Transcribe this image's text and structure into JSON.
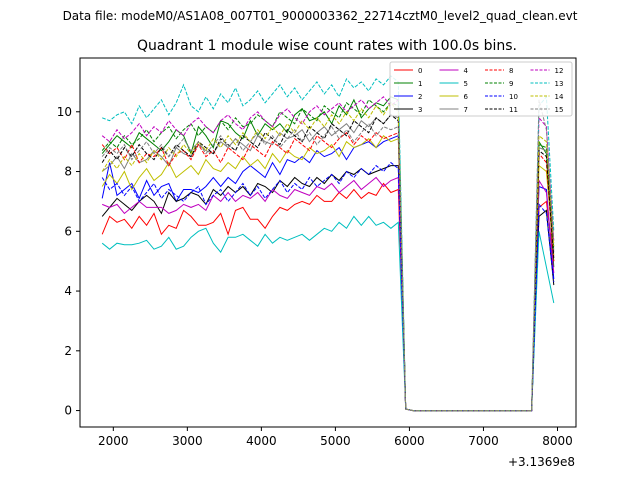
{
  "header": {
    "file_line": "Data file: modeM0/AS1A08_007T01_9000003362_22714cztM0_level2_quad_clean.evt"
  },
  "chart_data": {
    "type": "line",
    "title": "Quadrant 1 module wise count rates with 100.0s bins.",
    "xlabel": "",
    "ylabel": "",
    "offset_label": "+3.1369e8",
    "xlim": [
      1550,
      8250
    ],
    "ylim": [
      -0.55,
      11.8
    ],
    "xticks": [
      2000,
      3000,
      4000,
      5000,
      6000,
      7000,
      8000
    ],
    "xtick_labels": [
      "2000",
      "3000",
      "4000",
      "5000",
      "6000",
      "7000",
      "8000"
    ],
    "yticks": [
      0,
      2,
      4,
      6,
      8,
      10
    ],
    "ytick_labels": [
      "0",
      "2",
      "4",
      "6",
      "8",
      "10"
    ],
    "grid": false,
    "legend_position": "top-right",
    "legend_columns": 4,
    "x": [
      1850,
      1950,
      2050,
      2150,
      2250,
      2350,
      2450,
      2550,
      2650,
      2750,
      2850,
      2950,
      3050,
      3150,
      3250,
      3350,
      3450,
      3550,
      3650,
      3750,
      3850,
      3950,
      4050,
      4150,
      4250,
      4350,
      4450,
      4550,
      4650,
      4750,
      4850,
      4950,
      5050,
      5150,
      5250,
      5350,
      5450,
      5550,
      5650,
      5750,
      5850,
      5950,
      6050,
      6150,
      6250,
      6350,
      6450,
      6550,
      6650,
      6750,
      6850,
      6950,
      7050,
      7150,
      7250,
      7350,
      7450,
      7550,
      7650,
      7750,
      7850,
      7950
    ],
    "series": [
      {
        "name": "0",
        "color": "#ff0000",
        "dash": "solid",
        "values": [
          5.9,
          6.5,
          6.3,
          6.4,
          6.1,
          6.5,
          6.2,
          6.6,
          5.9,
          6.2,
          6.1,
          6.7,
          6.5,
          6.2,
          6.2,
          6.3,
          6.6,
          5.9,
          6.7,
          6.8,
          6.4,
          6.4,
          6.1,
          6.5,
          6.8,
          6.7,
          6.9,
          7.0,
          6.9,
          7.2,
          7.0,
          7.0,
          7.3,
          7.1,
          7.4,
          7.1,
          7.3,
          7.2,
          7.6,
          7.3,
          7.4,
          0.05,
          0.0,
          0.0,
          0.0,
          0.0,
          0.0,
          0.0,
          0.0,
          0.0,
          0.0,
          0.0,
          0.0,
          0.0,
          0.0,
          0.0,
          0.0,
          0.0,
          0.0,
          6.8,
          7.0,
          5.0
        ]
      },
      {
        "name": "1",
        "color": "#008000",
        "dash": "solid",
        "values": [
          8.6,
          8.9,
          9.2,
          9.0,
          8.8,
          9.3,
          9.1,
          8.9,
          8.7,
          9.0,
          9.4,
          9.2,
          8.6,
          9.5,
          9.2,
          8.8,
          9.7,
          9.6,
          9.3,
          9.1,
          9.7,
          9.2,
          9.6,
          9.4,
          9.6,
          9.3,
          9.9,
          10.1,
          9.7,
          9.8,
          10.0,
          9.6,
          10.2,
          9.9,
          10.4,
          9.8,
          10.1,
          10.3,
          10.2,
          10.5,
          10.4,
          0.05,
          0.0,
          0.0,
          0.0,
          0.0,
          0.0,
          0.0,
          0.0,
          0.0,
          0.0,
          0.0,
          0.0,
          0.0,
          0.0,
          0.0,
          0.0,
          0.0,
          0.0,
          9.0,
          8.6,
          4.8
        ]
      },
      {
        "name": "2",
        "color": "#0000ff",
        "dash": "solid",
        "values": [
          7.1,
          8.3,
          7.2,
          7.4,
          7.6,
          7.1,
          7.7,
          7.2,
          7.5,
          7.6,
          7.0,
          7.4,
          7.4,
          7.3,
          7.5,
          7.8,
          7.5,
          7.8,
          7.6,
          8.0,
          8.2,
          8.0,
          7.8,
          8.3,
          7.9,
          8.4,
          8.3,
          8.5,
          8.3,
          8.7,
          8.5,
          8.6,
          8.8,
          8.4,
          8.8,
          8.9,
          9.0,
          8.8,
          9.0,
          9.1,
          9.2,
          0.05,
          0.0,
          0.0,
          0.0,
          0.0,
          0.0,
          0.0,
          0.0,
          0.0,
          0.0,
          0.0,
          0.0,
          0.0,
          0.0,
          0.0,
          0.0,
          0.0,
          0.0,
          7.5,
          7.4,
          4.4
        ]
      },
      {
        "name": "3",
        "color": "#000000",
        "dash": "solid",
        "values": [
          6.5,
          6.8,
          7.1,
          6.9,
          6.7,
          7.0,
          7.2,
          7.0,
          6.6,
          7.3,
          7.0,
          7.1,
          7.3,
          7.2,
          6.9,
          7.4,
          7.2,
          7.5,
          7.3,
          7.5,
          7.2,
          7.6,
          7.5,
          7.3,
          7.7,
          7.5,
          7.8,
          7.6,
          7.5,
          7.8,
          7.6,
          7.9,
          7.7,
          8.0,
          7.9,
          8.1,
          7.9,
          8.0,
          8.1,
          8.2,
          8.2,
          0.05,
          0.0,
          0.0,
          0.0,
          0.0,
          0.0,
          0.0,
          0.0,
          0.0,
          0.0,
          0.0,
          0.0,
          0.0,
          0.0,
          0.0,
          0.0,
          0.0,
          0.0,
          6.5,
          6.7,
          4.2
        ]
      },
      {
        "name": "4",
        "color": "#bf00bf",
        "dash": "solid",
        "values": [
          6.9,
          6.8,
          6.9,
          6.6,
          6.8,
          7.0,
          6.8,
          6.8,
          6.8,
          6.6,
          6.7,
          6.9,
          6.8,
          6.9,
          6.7,
          7.2,
          7.0,
          7.3,
          7.0,
          7.2,
          7.1,
          7.3,
          7.0,
          7.4,
          7.2,
          7.1,
          7.4,
          7.3,
          7.2,
          7.5,
          7.4,
          7.6,
          7.3,
          7.5,
          7.7,
          7.4,
          7.6,
          7.8,
          7.5,
          7.7,
          7.8,
          0.05,
          0.0,
          0.0,
          0.0,
          0.0,
          0.0,
          0.0,
          0.0,
          0.0,
          0.0,
          0.0,
          0.0,
          0.0,
          0.0,
          0.0,
          0.0,
          0.0,
          0.0,
          7.7,
          7.3,
          4.6
        ]
      },
      {
        "name": "5",
        "color": "#00bfbf",
        "dash": "solid",
        "values": [
          5.6,
          5.4,
          5.6,
          5.55,
          5.55,
          5.6,
          5.7,
          5.4,
          5.5,
          5.8,
          5.4,
          5.5,
          5.8,
          6.0,
          6.1,
          5.6,
          5.3,
          5.8,
          5.8,
          5.9,
          5.7,
          5.5,
          5.9,
          5.6,
          5.8,
          5.7,
          5.8,
          5.9,
          5.7,
          5.9,
          6.1,
          6.0,
          6.3,
          6.1,
          6.5,
          6.2,
          6.5,
          6.2,
          6.3,
          6.1,
          6.3,
          0.05,
          0.0,
          0.0,
          0.0,
          0.0,
          0.0,
          0.0,
          0.0,
          0.0,
          0.0,
          0.0,
          0.0,
          0.0,
          0.0,
          0.0,
          0.0,
          0.0,
          0.0,
          6.0,
          4.8,
          3.6
        ]
      },
      {
        "name": "6",
        "color": "#bfbf00",
        "dash": "solid",
        "values": [
          7.5,
          7.9,
          7.6,
          8.0,
          7.4,
          7.8,
          8.1,
          7.7,
          7.9,
          8.3,
          7.8,
          8.0,
          8.2,
          7.9,
          8.4,
          8.1,
          8.0,
          8.3,
          8.1,
          8.5,
          8.2,
          8.4,
          8.1,
          8.6,
          8.3,
          8.7,
          8.5,
          8.4,
          8.8,
          8.6,
          8.7,
          8.9,
          8.5,
          9.0,
          8.8,
          8.9,
          9.1,
          8.8,
          9.2,
          9.0,
          9.1,
          0.05,
          0.0,
          0.0,
          0.0,
          0.0,
          0.0,
          0.0,
          0.0,
          0.0,
          0.0,
          0.0,
          0.0,
          0.0,
          0.0,
          0.0,
          0.0,
          0.0,
          0.0,
          8.2,
          8.0,
          5.2
        ]
      },
      {
        "name": "7",
        "color": "#808080",
        "dash": "solid",
        "values": [
          8.0,
          8.2,
          8.5,
          8.1,
          8.6,
          8.3,
          8.4,
          8.7,
          8.5,
          8.2,
          8.8,
          8.6,
          8.5,
          8.9,
          8.7,
          8.6,
          9.0,
          8.8,
          9.1,
          8.9,
          8.7,
          9.2,
          9.0,
          8.9,
          9.3,
          9.1,
          9.2,
          9.4,
          9.0,
          9.3,
          9.5,
          9.2,
          9.4,
          9.6,
          9.3,
          9.7,
          9.5,
          9.8,
          9.6,
          9.9,
          9.8,
          0.05,
          0.0,
          0.0,
          0.0,
          0.0,
          0.0,
          0.0,
          0.0,
          0.0,
          0.0,
          0.0,
          0.0,
          0.0,
          0.0,
          0.0,
          0.0,
          0.0,
          0.0,
          8.8,
          8.7,
          5.3
        ]
      },
      {
        "name": "8",
        "color": "#ff0000",
        "dash": "dashed",
        "values": [
          8.9,
          8.6,
          8.8,
          8.4,
          8.9,
          8.3,
          8.6,
          8.5,
          8.8,
          8.2,
          8.6,
          8.7,
          8.4,
          8.9,
          8.5,
          8.7,
          8.3,
          8.8,
          8.6,
          8.4,
          8.9,
          8.7,
          8.5,
          9.0,
          8.8,
          8.6,
          9.1,
          8.9,
          8.7,
          9.2,
          9.0,
          8.8,
          9.1,
          9.3,
          8.9,
          9.2,
          9.0,
          9.3,
          9.1,
          9.2,
          9.3,
          0.05,
          0.0,
          0.0,
          0.0,
          0.0,
          0.0,
          0.0,
          0.0,
          0.0,
          0.0,
          0.0,
          0.0,
          0.0,
          0.0,
          0.0,
          0.0,
          0.0,
          0.0,
          8.6,
          8.3,
          5.0
        ]
      },
      {
        "name": "9",
        "color": "#008000",
        "dash": "dashed",
        "values": [
          8.7,
          9.0,
          8.8,
          9.2,
          8.9,
          9.1,
          9.4,
          9.0,
          9.3,
          9.5,
          9.1,
          9.4,
          9.6,
          9.2,
          9.5,
          9.3,
          9.7,
          9.4,
          9.8,
          9.5,
          9.6,
          9.9,
          9.7,
          9.5,
          10.0,
          9.8,
          9.6,
          10.1,
          9.9,
          9.7,
          10.2,
          10.0,
          9.8,
          10.3,
          10.1,
          9.9,
          10.4,
          10.2,
          10.0,
          10.3,
          10.2,
          0.05,
          0.0,
          0.0,
          0.0,
          0.0,
          0.0,
          0.0,
          0.0,
          0.0,
          0.0,
          0.0,
          0.0,
          0.0,
          0.0,
          0.0,
          0.0,
          0.0,
          0.0,
          8.9,
          8.8,
          5.4
        ]
      },
      {
        "name": "10",
        "color": "#0000ff",
        "dash": "dashed",
        "values": [
          7.8,
          7.4,
          7.6,
          7.2,
          7.5,
          7.0,
          7.3,
          7.6,
          7.1,
          7.4,
          7.2,
          7.0,
          7.3,
          7.5,
          6.9,
          7.2,
          7.4,
          7.0,
          7.3,
          7.6,
          7.2,
          7.5,
          7.1,
          7.4,
          7.7,
          7.3,
          7.6,
          7.4,
          7.8,
          7.5,
          7.7,
          7.9,
          7.6,
          8.0,
          7.8,
          8.1,
          7.9,
          8.2,
          8.0,
          8.3,
          8.1,
          0.05,
          0.0,
          0.0,
          0.0,
          0.0,
          0.0,
          0.0,
          0.0,
          0.0,
          0.0,
          0.0,
          0.0,
          0.0,
          0.0,
          0.0,
          0.0,
          0.0,
          0.0,
          6.9,
          6.6,
          4.3
        ]
      },
      {
        "name": "11",
        "color": "#000000",
        "dash": "dashed",
        "values": [
          8.3,
          8.7,
          8.4,
          8.8,
          8.5,
          8.9,
          8.6,
          8.4,
          8.8,
          8.5,
          8.9,
          8.7,
          8.5,
          9.0,
          8.8,
          8.6,
          9.1,
          8.9,
          8.7,
          9.2,
          9.0,
          8.8,
          9.3,
          9.1,
          8.9,
          9.4,
          9.2,
          9.0,
          9.5,
          9.3,
          9.1,
          9.6,
          9.4,
          9.2,
          9.7,
          9.5,
          9.3,
          9.8,
          9.6,
          9.9,
          9.7,
          0.05,
          0.0,
          0.0,
          0.0,
          0.0,
          0.0,
          0.0,
          0.0,
          0.0,
          0.0,
          0.0,
          0.0,
          0.0,
          0.0,
          0.0,
          0.0,
          0.0,
          0.0,
          8.7,
          8.5,
          5.1
        ]
      },
      {
        "name": "12",
        "color": "#bf00bf",
        "dash": "dashed",
        "values": [
          9.2,
          9.0,
          9.4,
          9.1,
          9.3,
          9.6,
          9.2,
          9.5,
          9.3,
          9.7,
          9.4,
          9.2,
          9.6,
          9.8,
          9.5,
          9.3,
          9.7,
          9.9,
          9.6,
          9.4,
          9.8,
          10.0,
          9.7,
          9.5,
          9.9,
          10.1,
          9.8,
          9.6,
          10.0,
          10.2,
          9.9,
          10.1,
          10.3,
          10.0,
          10.2,
          10.4,
          10.1,
          10.3,
          10.5,
          10.2,
          10.4,
          0.05,
          0.0,
          0.0,
          0.0,
          0.0,
          0.0,
          0.0,
          0.0,
          0.0,
          0.0,
          0.0,
          0.0,
          0.0,
          0.0,
          0.0,
          0.0,
          0.0,
          0.0,
          9.8,
          9.5,
          5.6
        ]
      },
      {
        "name": "13",
        "color": "#00bfbf",
        "dash": "dashed",
        "values": [
          9.8,
          9.7,
          9.9,
          10.0,
          9.6,
          10.2,
          9.8,
          10.1,
          10.4,
          9.9,
          10.3,
          10.9,
          10.2,
          10.0,
          10.5,
          10.1,
          10.6,
          10.3,
          10.8,
          10.2,
          10.4,
          10.7,
          10.3,
          10.6,
          10.9,
          10.5,
          10.8,
          10.4,
          10.7,
          11.0,
          10.6,
          10.9,
          10.5,
          11.1,
          10.8,
          11.0,
          10.7,
          11.1,
          10.9,
          11.2,
          11.0,
          0.05,
          0.0,
          0.0,
          0.0,
          0.0,
          0.0,
          0.0,
          0.0,
          0.0,
          0.0,
          0.0,
          0.0,
          0.0,
          0.0,
          0.0,
          0.0,
          0.0,
          0.0,
          10.2,
          10.5,
          6.0
        ]
      },
      {
        "name": "14",
        "color": "#bfbf00",
        "dash": "dashed",
        "values": [
          8.0,
          8.4,
          8.1,
          8.5,
          8.2,
          8.6,
          8.3,
          8.7,
          8.4,
          8.8,
          8.5,
          8.9,
          8.6,
          9.0,
          8.7,
          9.1,
          8.8,
          9.2,
          8.9,
          9.3,
          9.0,
          9.4,
          9.1,
          9.5,
          9.2,
          9.6,
          9.3,
          9.7,
          9.4,
          9.8,
          9.5,
          9.9,
          9.6,
          10.0,
          9.7,
          10.1,
          9.8,
          10.2,
          9.9,
          10.3,
          10.0,
          0.05,
          0.0,
          0.0,
          0.0,
          0.0,
          0.0,
          0.0,
          0.0,
          0.0,
          0.0,
          0.0,
          0.0,
          0.0,
          0.0,
          0.0,
          0.0,
          0.0,
          0.0,
          9.2,
          9.0,
          5.5
        ]
      },
      {
        "name": "15",
        "color": "#808080",
        "dash": "dashed",
        "values": [
          8.5,
          8.8,
          8.6,
          8.9,
          8.4,
          8.7,
          9.0,
          8.6,
          8.9,
          8.5,
          8.8,
          9.1,
          8.7,
          9.0,
          8.6,
          8.9,
          9.2,
          8.8,
          9.1,
          8.7,
          9.0,
          9.3,
          8.9,
          9.2,
          8.8,
          9.1,
          9.4,
          9.0,
          9.3,
          8.9,
          9.2,
          9.5,
          9.1,
          9.4,
          9.0,
          9.3,
          9.6,
          9.2,
          9.5,
          9.4,
          9.5,
          0.05,
          0.0,
          0.0,
          0.0,
          0.0,
          0.0,
          0.0,
          0.0,
          0.0,
          0.0,
          0.0,
          0.0,
          0.0,
          0.0,
          0.0,
          0.0,
          0.0,
          0.0,
          10.4,
          9.4,
          5.7
        ]
      }
    ]
  }
}
